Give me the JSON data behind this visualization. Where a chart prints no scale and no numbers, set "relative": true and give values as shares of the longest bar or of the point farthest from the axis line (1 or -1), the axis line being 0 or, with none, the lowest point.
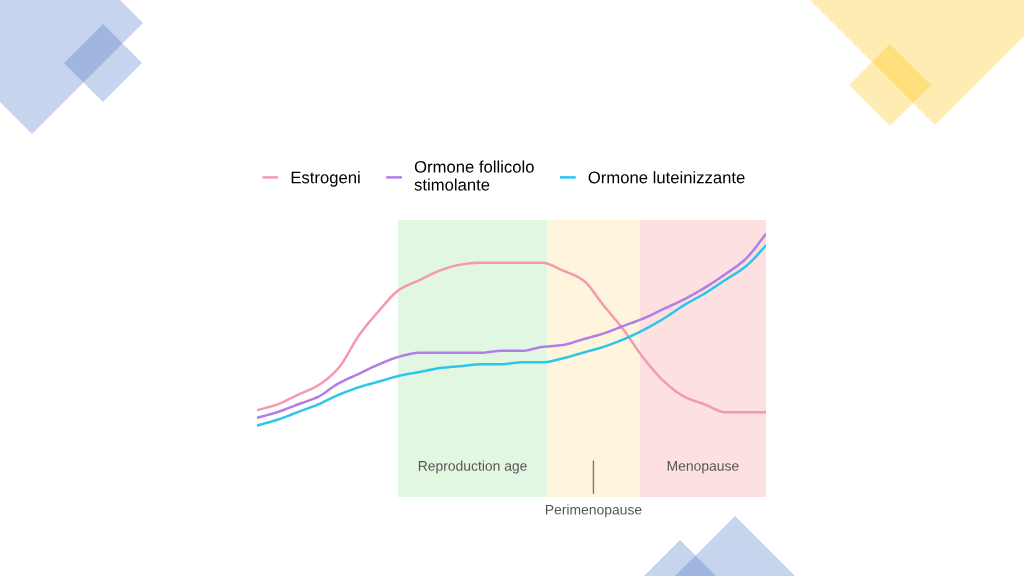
{
  "chart_data": {
    "type": "line",
    "relative": true,
    "legend": "top",
    "categories": [
      null,
      null,
      null,
      null,
      null,
      null,
      null,
      null,
      null,
      null,
      null,
      null,
      null,
      null,
      null,
      null,
      null,
      null,
      null,
      null,
      null,
      null,
      null,
      null,
      null,
      null
    ],
    "series": [
      {
        "name": "Estrogeni",
        "color": "#f49ab0",
        "values": [
          0.08,
          0.11,
          0.16,
          0.21,
          0.3,
          0.47,
          0.6,
          0.71,
          0.76,
          0.81,
          0.84,
          0.85,
          0.85,
          0.85,
          0.85,
          0.81,
          0.76,
          0.63,
          0.5,
          0.35,
          0.23,
          0.15,
          0.11,
          0.07,
          0.07,
          0.07
        ]
      },
      {
        "name": "Ormone follicolo stimolante",
        "color": "#b27ee6",
        "values": [
          0.04,
          0.07,
          0.11,
          0.15,
          0.22,
          0.27,
          0.32,
          0.36,
          0.38,
          0.38,
          0.38,
          0.38,
          0.39,
          0.39,
          0.41,
          0.42,
          0.45,
          0.48,
          0.52,
          0.56,
          0.61,
          0.66,
          0.72,
          0.79,
          0.87,
          1.0
        ]
      },
      {
        "name": "Ormone luteinizzante",
        "color": "#2ec5ea",
        "values": [
          0.0,
          0.03,
          0.07,
          0.11,
          0.16,
          0.2,
          0.23,
          0.26,
          0.28,
          0.3,
          0.31,
          0.32,
          0.32,
          0.33,
          0.33,
          0.35,
          0.38,
          0.41,
          0.45,
          0.5,
          0.56,
          0.63,
          0.69,
          0.76,
          0.83,
          0.94
        ]
      }
    ],
    "annotations": [
      "Reproduction age",
      "Perimenopause",
      "Menopause"
    ]
  }
}
